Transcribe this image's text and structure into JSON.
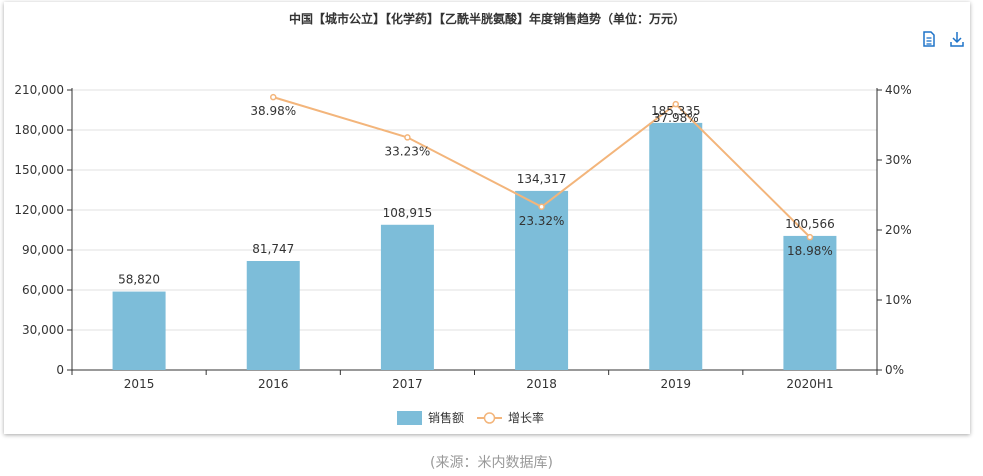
{
  "chart_data": {
    "type": "bar",
    "title": "中国【城市公立】【化学药】【乙酰半胱氨酸】年度销售趋势（单位：万元）",
    "categories": [
      "2015",
      "2016",
      "2017",
      "2018",
      "2019",
      "2020H1"
    ],
    "series": [
      {
        "name": "销售额",
        "type": "bar",
        "axis": "left",
        "values": [
          58820,
          81747,
          108915,
          134317,
          185335,
          100566
        ],
        "labels": [
          "58,820",
          "81,747",
          "108,915",
          "134,317",
          "185,335",
          "100,566"
        ],
        "color": "#7dbdd9"
      },
      {
        "name": "增长率",
        "type": "line",
        "axis": "right",
        "values": [
          null,
          38.98,
          33.23,
          23.32,
          37.98,
          18.98
        ],
        "labels": [
          "",
          "38.98%",
          "33.23%",
          "23.32%",
          "37.98%",
          "18.98%"
        ],
        "color": "#f3b57b"
      }
    ],
    "yleft": {
      "min": 0,
      "max": 210000,
      "ticks": [
        "0",
        "30,000",
        "60,000",
        "90,000",
        "120,000",
        "150,000",
        "180,000",
        "210,000"
      ]
    },
    "yright": {
      "min": 0,
      "max": 40,
      "ticks": [
        "0%",
        "10%",
        "20%",
        "30%",
        "40%"
      ]
    },
    "legend_position": "bottom-center",
    "grid": true
  },
  "toolbox": {
    "data_view_icon": "data-view-icon",
    "download_icon": "download-icon"
  },
  "source_note": "(来源：米内数据库)"
}
